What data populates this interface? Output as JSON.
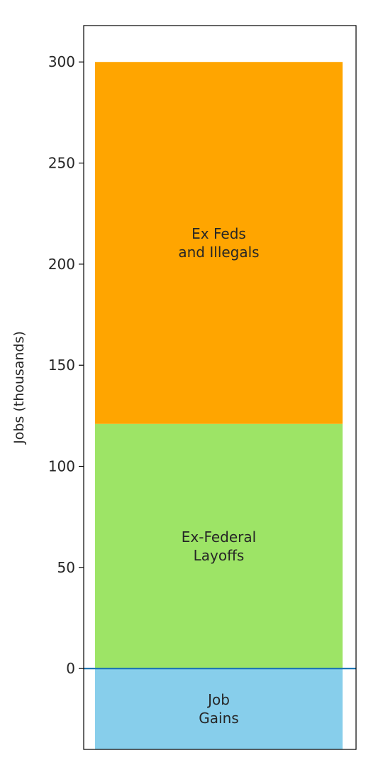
{
  "chart_data": {
    "type": "bar",
    "stacked": true,
    "title": "",
    "xlabel": "",
    "ylabel": "Jobs (thousands)",
    "ylim": [
      -40,
      318
    ],
    "yticks": [
      0,
      50,
      100,
      150,
      200,
      250,
      300
    ],
    "yticklabels": [
      "0",
      "50",
      "100",
      "150",
      "200",
      "250",
      "300"
    ],
    "grid": false,
    "legend": "none",
    "segments": [
      {
        "label_lines": [
          "Job",
          "Gains"
        ],
        "bottom": -40,
        "top": 0,
        "value": -40,
        "color": "#87ceeb"
      },
      {
        "label_lines": [
          "Ex-Federal",
          "Layoffs"
        ],
        "bottom": 0,
        "top": 121,
        "value": 121,
        "color": "#9de466"
      },
      {
        "label_lines": [
          "Ex Feds",
          "and Illegals"
        ],
        "bottom": 121,
        "top": 300,
        "value": 179,
        "color": "#ffa500"
      }
    ],
    "reference_line": {
      "y": 0,
      "color": "#1f77b4"
    }
  }
}
